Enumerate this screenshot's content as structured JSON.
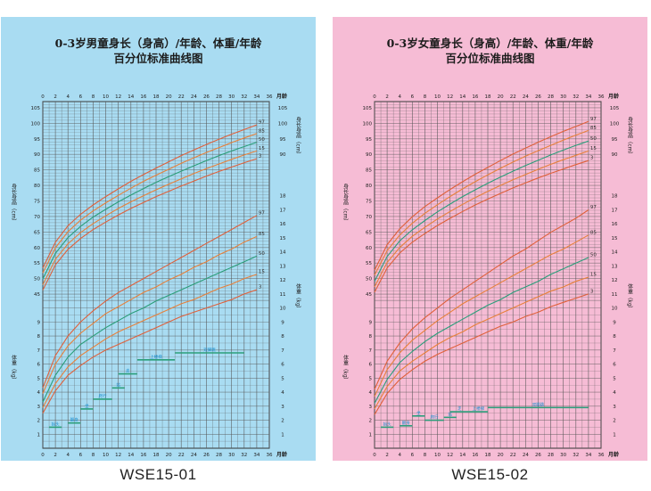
{
  "chart_data": [
    {
      "type": "line",
      "title": "0-3岁男童身长（身高）/年龄、体重/年龄",
      "subtitle": "百分位标准曲线图",
      "xlabel": "月龄",
      "ylabel_height": "身长身高（cm）",
      "ylabel_weight": "体重（kg）",
      "x_ticks": [
        0,
        2,
        4,
        6,
        8,
        10,
        12,
        14,
        16,
        18,
        20,
        22,
        24,
        26,
        28,
        30,
        32,
        34,
        36
      ],
      "height_ylim": [
        43,
        107
      ],
      "weight_ylim": [
        0,
        19
      ],
      "height_ticks": [
        45,
        50,
        55,
        60,
        65,
        70,
        75,
        80,
        85,
        90,
        95,
        100,
        105
      ],
      "weight_ticks": [
        1,
        2,
        3,
        4,
        5,
        6,
        7,
        8,
        9,
        10,
        11,
        12,
        13,
        14,
        15,
        16,
        17,
        18
      ],
      "x": [
        0,
        2,
        4,
        6,
        8,
        10,
        12,
        14,
        16,
        18,
        20,
        22,
        24,
        26,
        28,
        30,
        32,
        34
      ],
      "height_series": [
        {
          "name": "97",
          "color": "#e0603a",
          "values": [
            53.4,
            61.7,
            67.0,
            70.7,
            73.7,
            76.4,
            78.9,
            81.3,
            83.5,
            85.6,
            87.6,
            89.6,
            91.4,
            93.2,
            94.9,
            96.5,
            98.0,
            99.5
          ]
        },
        {
          "name": "85",
          "color": "#e8803a",
          "values": [
            51.8,
            59.9,
            65.1,
            68.8,
            71.8,
            74.4,
            76.8,
            79.1,
            81.3,
            83.3,
            85.2,
            87.1,
            88.9,
            90.6,
            92.2,
            93.8,
            95.3,
            96.7
          ]
        },
        {
          "name": "50",
          "color": "#2a9e7a",
          "values": [
            49.9,
            58.1,
            63.2,
            66.8,
            69.8,
            72.3,
            74.7,
            76.9,
            79.0,
            81.0,
            82.8,
            84.6,
            86.3,
            88.0,
            89.6,
            91.1,
            92.5,
            93.9
          ]
        },
        {
          "name": "15",
          "color": "#e8803a",
          "values": [
            48.0,
            56.2,
            61.2,
            64.8,
            67.7,
            70.2,
            72.6,
            74.7,
            76.7,
            78.6,
            80.4,
            82.1,
            83.8,
            85.4,
            86.9,
            88.4,
            89.8,
            91.1
          ]
        },
        {
          "name": "3",
          "color": "#e0603a",
          "values": [
            46.3,
            54.4,
            59.4,
            62.9,
            65.8,
            68.2,
            70.5,
            72.6,
            74.5,
            76.4,
            78.1,
            79.8,
            81.4,
            83.0,
            84.5,
            85.9,
            87.3,
            88.6
          ]
        }
      ],
      "weight_series": [
        {
          "name": "97",
          "color": "#e0603a",
          "values": [
            4.3,
            6.6,
            8.0,
            9.0,
            9.8,
            10.5,
            11.1,
            11.6,
            12.1,
            12.6,
            13.1,
            13.6,
            14.1,
            14.6,
            15.1,
            15.6,
            16.1,
            16.6
          ]
        },
        {
          "name": "85",
          "color": "#e8803a",
          "values": [
            3.9,
            6.0,
            7.3,
            8.2,
            8.9,
            9.6,
            10.1,
            10.6,
            11.1,
            11.5,
            12.0,
            12.4,
            12.9,
            13.3,
            13.8,
            14.2,
            14.7,
            15.1
          ]
        },
        {
          "name": "50",
          "color": "#2a9e7a",
          "values": [
            3.3,
            5.2,
            6.5,
            7.4,
            8.0,
            8.6,
            9.1,
            9.6,
            10.0,
            10.5,
            10.9,
            11.3,
            11.7,
            12.1,
            12.5,
            12.9,
            13.3,
            13.7
          ]
        },
        {
          "name": "15",
          "color": "#e8803a",
          "values": [
            2.9,
            4.6,
            5.8,
            6.6,
            7.2,
            7.8,
            8.3,
            8.7,
            9.1,
            9.5,
            9.9,
            10.3,
            10.6,
            11.0,
            11.4,
            11.7,
            12.1,
            12.4
          ]
        },
        {
          "name": "3",
          "color": "#e0603a",
          "values": [
            2.5,
            4.1,
            5.2,
            5.9,
            6.5,
            7.0,
            7.4,
            7.8,
            8.2,
            8.6,
            9.0,
            9.4,
            9.7,
            10.0,
            10.3,
            10.6,
            11.0,
            11.3
          ]
        }
      ],
      "milestones": [
        {
          "label": "抬头",
          "x0": 1,
          "x1": 3,
          "y": 1.5
        },
        {
          "label": "翻身",
          "x0": 4,
          "x1": 6,
          "y": 1.8
        },
        {
          "label": "坐",
          "x0": 6,
          "x1": 8,
          "y": 2.8
        },
        {
          "label": "爬行",
          "x0": 8,
          "x1": 11,
          "y": 3.5
        },
        {
          "label": "站",
          "x0": 11,
          "x1": 13,
          "y": 4.3
        },
        {
          "label": "走",
          "x0": 12,
          "x1": 15,
          "y": 5.3
        },
        {
          "label": "上楼梯",
          "x0": 15,
          "x1": 21,
          "y": 6.3
        },
        {
          "label": "双脚跳",
          "x0": 21,
          "x1": 32,
          "y": 6.8
        }
      ]
    },
    {
      "type": "line",
      "title": "0-3岁女童身长（身高）/年龄、体重/年龄",
      "subtitle": "百分位标准曲线图",
      "xlabel": "月龄",
      "ylabel_height": "身长身高（cm）",
      "ylabel_weight": "体重（kg）",
      "x_ticks": [
        0,
        2,
        4,
        6,
        8,
        10,
        12,
        14,
        16,
        18,
        20,
        22,
        24,
        26,
        28,
        30,
        32,
        34,
        36
      ],
      "height_ylim": [
        43,
        107
      ],
      "weight_ylim": [
        0,
        19
      ],
      "height_ticks": [
        45,
        50,
        55,
        60,
        65,
        70,
        75,
        80,
        85,
        90,
        95,
        100,
        105
      ],
      "weight_ticks": [
        1,
        2,
        3,
        4,
        5,
        6,
        7,
        8,
        9,
        10,
        11,
        12,
        13,
        14,
        15,
        16,
        17,
        18
      ],
      "x": [
        0,
        2,
        4,
        6,
        8,
        10,
        12,
        14,
        16,
        18,
        20,
        22,
        24,
        26,
        28,
        30,
        32,
        34
      ],
      "height_series": [
        {
          "name": "97",
          "color": "#e0603a",
          "values": [
            52.7,
            60.9,
            66.0,
            69.9,
            73.2,
            76.0,
            78.7,
            81.2,
            83.6,
            85.8,
            88.0,
            90.1,
            92.0,
            93.9,
            95.7,
            97.4,
            99.0,
            100.6
          ]
        },
        {
          "name": "85",
          "color": "#e8803a",
          "values": [
            51.1,
            59.0,
            64.0,
            67.8,
            71.0,
            73.8,
            76.4,
            78.9,
            81.2,
            83.4,
            85.5,
            87.5,
            89.4,
            91.2,
            92.9,
            94.6,
            96.2,
            97.7
          ]
        },
        {
          "name": "50",
          "color": "#2a9e7a",
          "values": [
            49.1,
            57.1,
            62.1,
            65.7,
            68.7,
            71.5,
            74.0,
            76.4,
            78.6,
            80.7,
            82.7,
            84.6,
            86.4,
            88.1,
            89.8,
            91.4,
            92.9,
            94.3
          ]
        },
        {
          "name": "15",
          "color": "#e8803a",
          "values": [
            47.3,
            55.2,
            60.0,
            63.6,
            66.5,
            69.2,
            71.6,
            73.9,
            76.1,
            78.1,
            80.0,
            81.8,
            83.5,
            85.2,
            86.8,
            88.3,
            89.7,
            91.1
          ]
        },
        {
          "name": "3",
          "color": "#e0603a",
          "values": [
            45.6,
            53.4,
            58.2,
            61.7,
            64.5,
            67.1,
            69.4,
            71.6,
            73.7,
            75.6,
            77.4,
            79.2,
            80.8,
            82.4,
            83.9,
            85.3,
            86.7,
            88.0
          ]
        }
      ],
      "weight_series": [
        {
          "name": "97",
          "color": "#e0603a",
          "values": [
            4.2,
            6.2,
            7.5,
            8.5,
            9.3,
            10.0,
            10.7,
            11.3,
            11.9,
            12.5,
            13.1,
            13.7,
            14.2,
            14.8,
            15.4,
            15.9,
            16.4,
            17.0
          ]
        },
        {
          "name": "85",
          "color": "#e8803a",
          "values": [
            3.7,
            5.6,
            6.8,
            7.7,
            8.4,
            9.1,
            9.7,
            10.3,
            10.8,
            11.3,
            11.8,
            12.3,
            12.8,
            13.3,
            13.8,
            14.2,
            14.7,
            15.2
          ]
        },
        {
          "name": "50",
          "color": "#2a9e7a",
          "values": [
            3.2,
            4.9,
            6.1,
            6.9,
            7.6,
            8.2,
            8.7,
            9.2,
            9.7,
            10.2,
            10.6,
            11.1,
            11.5,
            11.9,
            12.4,
            12.8,
            13.2,
            13.6
          ]
        },
        {
          "name": "15",
          "color": "#e8803a",
          "values": [
            2.8,
            4.4,
            5.5,
            6.2,
            6.8,
            7.4,
            7.9,
            8.3,
            8.8,
            9.2,
            9.6,
            10.0,
            10.4,
            10.8,
            11.2,
            11.5,
            11.9,
            12.2
          ]
        },
        {
          "name": "3",
          "color": "#e0603a",
          "values": [
            2.4,
            3.9,
            4.9,
            5.6,
            6.2,
            6.7,
            7.1,
            7.5,
            7.9,
            8.3,
            8.7,
            9.0,
            9.4,
            9.7,
            10.1,
            10.4,
            10.7,
            11.0
          ]
        }
      ],
      "milestones": [
        {
          "label": "抬头",
          "x0": 1,
          "x1": 3,
          "y": 1.5
        },
        {
          "label": "翻身",
          "x0": 4,
          "x1": 6,
          "y": 1.6
        },
        {
          "label": "坐",
          "x0": 6,
          "x1": 8,
          "y": 2.3
        },
        {
          "label": "爬行",
          "x0": 8,
          "x1": 11,
          "y": 2.0
        },
        {
          "label": "站",
          "x0": 11,
          "x1": 13,
          "y": 2.2
        },
        {
          "label": "走",
          "x0": 12,
          "x1": 15,
          "y": 2.6
        },
        {
          "label": "上楼梯",
          "x0": 15,
          "x1": 18,
          "y": 2.6
        },
        {
          "label": "双脚跳",
          "x0": 18,
          "x1": 34,
          "y": 2.9
        }
      ]
    }
  ],
  "captions": {
    "left": "WSE15-01",
    "right": "WSE15-02"
  },
  "colors": {
    "panel_left": "#a9dcf2",
    "panel_right": "#f6bcd5",
    "grid": "#555555",
    "milestone": "#2a9e7a",
    "milestone_text": "#1a8fd0"
  }
}
